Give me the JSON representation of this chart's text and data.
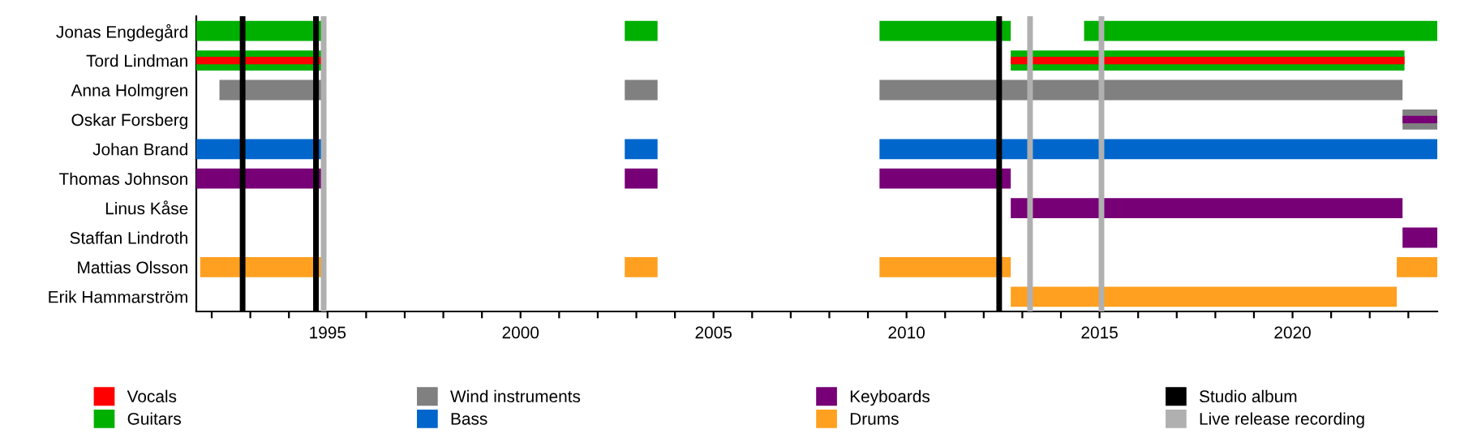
{
  "chart_data": {
    "type": "bar",
    "orientation": "horizontal",
    "legend": "bottom",
    "grid": false,
    "categories": [
      "Jonas Engdegård",
      "Tord Lindman",
      "Anna Holmgren",
      "Oskar Forsberg",
      "Johan Brand",
      "Thomas Johnson",
      "Linus Kåse",
      "Staffan Lindroth",
      "Mattias Olsson",
      "Erik Hammarström"
    ],
    "xlim": [
      1991.6,
      2023.75
    ],
    "xticks": [
      {
        "value": 1992,
        "label": null
      },
      {
        "value": 1993,
        "label": null
      },
      {
        "value": 1994,
        "label": null
      },
      1995,
      {
        "value": 1996,
        "label": null
      },
      {
        "value": 1997,
        "label": null
      },
      {
        "value": 1998,
        "label": null
      },
      {
        "value": 1999,
        "label": null
      },
      2000,
      {
        "value": 2001,
        "label": null
      },
      {
        "value": 2002,
        "label": null
      },
      {
        "value": 2003,
        "label": null
      },
      {
        "value": 2004,
        "label": null
      },
      2005,
      {
        "value": 2006,
        "label": null
      },
      {
        "value": 2007,
        "label": null
      },
      {
        "value": 2008,
        "label": null
      },
      {
        "value": 2009,
        "label": null
      },
      2010,
      {
        "value": 2011,
        "label": null
      },
      {
        "value": 2012,
        "label": null
      },
      {
        "value": 2013,
        "label": null
      },
      {
        "value": 2014,
        "label": null
      },
      2015,
      {
        "value": 2016,
        "label": null
      },
      {
        "value": 2017,
        "label": null
      },
      {
        "value": 2018,
        "label": null
      },
      {
        "value": 2019,
        "label": null
      },
      2020,
      {
        "value": 2021,
        "label": null
      },
      {
        "value": 2022,
        "label": null
      },
      {
        "value": 2023,
        "label": null
      }
    ],
    "series": [
      {
        "name": "Vocals",
        "color": "#ff0000",
        "base": [
          null,
          1991.6,
          null,
          null,
          null,
          null,
          null,
          null,
          null,
          null
        ],
        "values": [
          null,
          3.3,
          null,
          null,
          null,
          null,
          null,
          null,
          null,
          null
        ]
      },
      {
        "color": "#ff0000",
        "base": [
          null,
          2012.7,
          null,
          null,
          null,
          null,
          null,
          null,
          null,
          null
        ],
        "values": [
          null,
          10.2,
          null,
          null,
          null,
          null,
          null,
          null,
          null,
          null
        ]
      },
      {
        "name": "Guitars",
        "color": "#00b000",
        "base": [
          1991.6,
          1991.6,
          null,
          null,
          null,
          null,
          null,
          null,
          null,
          null
        ],
        "values": [
          3.3,
          3.3,
          null,
          null,
          null,
          null,
          null,
          null,
          null,
          null
        ]
      },
      {
        "color": "#00b000",
        "base": [
          2002.7,
          null,
          null,
          null,
          null,
          null,
          null,
          null,
          null,
          null
        ],
        "values": [
          0.85,
          null,
          null,
          null,
          null,
          null,
          null,
          null,
          null,
          null
        ]
      },
      {
        "color": "#00b000",
        "base": [
          2009.3,
          null,
          null,
          null,
          null,
          null,
          null,
          null,
          null,
          null
        ],
        "values": [
          3.4,
          null,
          null,
          null,
          null,
          null,
          null,
          null,
          null,
          null
        ]
      },
      {
        "color": "#00b000",
        "base": [
          2014.6,
          2012.7,
          null,
          null,
          null,
          null,
          null,
          null,
          null,
          null
        ],
        "values": [
          9.15,
          10.2,
          null,
          null,
          null,
          null,
          null,
          null,
          null,
          null
        ]
      },
      {
        "name": "Wind instruments",
        "color": "#808080",
        "base": [
          null,
          null,
          1992.2,
          null,
          null,
          null,
          null,
          null,
          null,
          null
        ],
        "values": [
          null,
          null,
          2.7,
          null,
          null,
          null,
          null,
          null,
          null,
          null
        ]
      },
      {
        "color": "#808080",
        "base": [
          null,
          null,
          2002.7,
          null,
          null,
          null,
          null,
          null,
          null,
          null
        ],
        "values": [
          null,
          null,
          0.85,
          null,
          null,
          null,
          null,
          null,
          null,
          null
        ]
      },
      {
        "color": "#808080",
        "base": [
          null,
          null,
          2009.3,
          null,
          null,
          null,
          null,
          null,
          null,
          null
        ],
        "values": [
          null,
          null,
          13.55,
          null,
          null,
          null,
          null,
          null,
          null,
          null
        ]
      },
      {
        "name": "Bass",
        "color": "#0066cc",
        "base": [
          null,
          null,
          null,
          null,
          1991.6,
          null,
          null,
          null,
          null,
          null
        ],
        "values": [
          null,
          null,
          null,
          null,
          3.3,
          null,
          null,
          null,
          null,
          null
        ]
      },
      {
        "color": "#0066cc",
        "base": [
          null,
          null,
          null,
          null,
          2002.7,
          null,
          null,
          null,
          null,
          null
        ],
        "values": [
          null,
          null,
          null,
          null,
          0.85,
          null,
          null,
          null,
          null,
          null
        ]
      },
      {
        "color": "#0066cc",
        "base": [
          null,
          null,
          null,
          null,
          2009.3,
          null,
          null,
          null,
          null,
          null
        ],
        "values": [
          null,
          null,
          null,
          null,
          14.45,
          null,
          null,
          null,
          null,
          null
        ]
      },
      {
        "name": "Keyboards",
        "color": "#770077",
        "base": [
          null,
          null,
          null,
          null,
          null,
          1991.6,
          null,
          null,
          null,
          null
        ],
        "values": [
          null,
          null,
          null,
          null,
          null,
          3.3,
          null,
          null,
          null,
          null
        ]
      },
      {
        "color": "#770077",
        "base": [
          null,
          null,
          null,
          null,
          null,
          2002.7,
          null,
          null,
          null,
          null
        ],
        "values": [
          null,
          null,
          null,
          null,
          null,
          0.85,
          null,
          null,
          null,
          null
        ]
      },
      {
        "color": "#770077",
        "base": [
          null,
          null,
          null,
          null,
          null,
          2009.3,
          2012.7,
          null,
          null,
          null
        ],
        "values": [
          null,
          null,
          null,
          null,
          null,
          3.4,
          10.15,
          null,
          null,
          null
        ]
      },
      {
        "color": "#770077",
        "base": [
          null,
          null,
          null,
          2022.85,
          null,
          null,
          null,
          2022.85,
          null,
          null
        ],
        "values": [
          null,
          null,
          null,
          0.9,
          null,
          null,
          null,
          0.9,
          null,
          null
        ]
      },
      {
        "name": "Drums",
        "color": "#ffa020",
        "base": [
          null,
          null,
          null,
          null,
          null,
          null,
          null,
          null,
          1991.7,
          null
        ],
        "values": [
          null,
          null,
          null,
          null,
          null,
          null,
          null,
          null,
          3.2,
          null
        ]
      },
      {
        "color": "#ffa020",
        "base": [
          null,
          null,
          null,
          null,
          null,
          null,
          null,
          null,
          2002.7,
          null
        ],
        "values": [
          null,
          null,
          null,
          null,
          null,
          null,
          null,
          null,
          0.85,
          null
        ]
      },
      {
        "color": "#ffa020",
        "base": [
          null,
          null,
          null,
          null,
          null,
          null,
          null,
          null,
          2009.3,
          2012.7
        ],
        "values": [
          null,
          null,
          null,
          null,
          null,
          null,
          null,
          null,
          3.4,
          10.0
        ]
      },
      {
        "color": "#ffa020",
        "base": [
          null,
          null,
          null,
          null,
          null,
          null,
          null,
          null,
          2022.7,
          null
        ],
        "values": [
          null,
          null,
          null,
          null,
          null,
          null,
          null,
          null,
          1.05,
          null
        ]
      },
      {
        "color": "#808080",
        "base": [
          null,
          null,
          null,
          2022.85,
          null,
          null,
          null,
          null,
          null,
          null
        ],
        "values": [
          null,
          null,
          null,
          0.9,
          null,
          null,
          null,
          null,
          null,
          null
        ]
      }
    ],
    "ref_lines": [
      {
        "axis": "x",
        "value": 1992.8,
        "label": "Studio album",
        "color": "#000000"
      },
      {
        "axis": "x",
        "value": 1994.7,
        "color": "#000000"
      },
      {
        "axis": "x",
        "value": 2012.4,
        "color": "#000000"
      },
      {
        "axis": "x",
        "value": 1994.9,
        "label": "Live release recording",
        "color": "#b0b0b0"
      },
      {
        "axis": "x",
        "value": 2013.2,
        "color": "#b0b0b0"
      },
      {
        "axis": "x",
        "value": 2015.05,
        "color": "#b0b0b0"
      }
    ]
  }
}
